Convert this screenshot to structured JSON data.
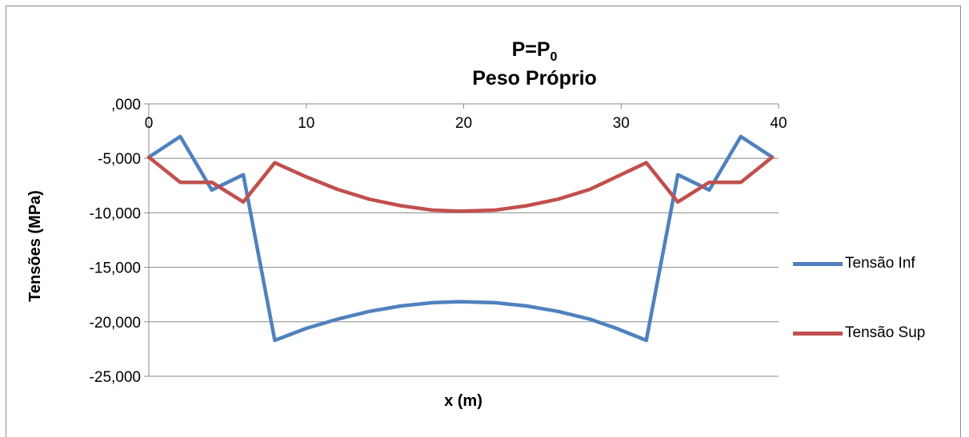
{
  "title": {
    "line1_main": "P=P",
    "line1_sub": "0",
    "line2": "Peso Próprio"
  },
  "chart_data": {
    "type": "line",
    "title": "P=P0 Peso Próprio",
    "xlabel": "x (m)",
    "ylabel": "Tensões (MPa)",
    "xlim": [
      0,
      40
    ],
    "ylim": [
      -25000,
      0
    ],
    "x_ticks": [
      0,
      10,
      20,
      30,
      40
    ],
    "x_tick_labels": [
      "0",
      "10",
      "20",
      "30",
      "40"
    ],
    "y_ticks": [
      0,
      -5000,
      -10000,
      -15000,
      -20000,
      -25000
    ],
    "y_tick_labels": [
      ",000",
      "-5,000",
      "-10,000",
      "-15,000",
      "-20,000",
      "-25,000"
    ],
    "grid": "horizontal",
    "legend_position": "right",
    "series": [
      {
        "name": "Tensão Inf",
        "color": "#4F81BD",
        "x": [
          0,
          2,
          4,
          6,
          8,
          10,
          12,
          14,
          16,
          18,
          19.75,
          22,
          24,
          26,
          28,
          29.7,
          31.6,
          33.6,
          35.6,
          37.6,
          39.6
        ],
        "y": [
          -4900,
          -3000,
          -7900,
          -6500,
          -21700,
          -20600,
          -19750,
          -19050,
          -18550,
          -18250,
          -18150,
          -18250,
          -18550,
          -19050,
          -19750,
          -20600,
          -21700,
          -6500,
          -7900,
          -3000,
          -4900
        ]
      },
      {
        "name": "Tensão Sup",
        "color": "#C0504D",
        "x": [
          0,
          2,
          4,
          6,
          8,
          10,
          12,
          14,
          16,
          18,
          19.75,
          22,
          24,
          26,
          28,
          29.7,
          31.6,
          33.6,
          35.6,
          37.6,
          39.6
        ],
        "y": [
          -4900,
          -7200,
          -7200,
          -9000,
          -5400,
          -6700,
          -7850,
          -8750,
          -9350,
          -9750,
          -9850,
          -9750,
          -9350,
          -8750,
          -7850,
          -6700,
          -5400,
          -9000,
          -7200,
          -7200,
          -4900
        ]
      }
    ]
  }
}
